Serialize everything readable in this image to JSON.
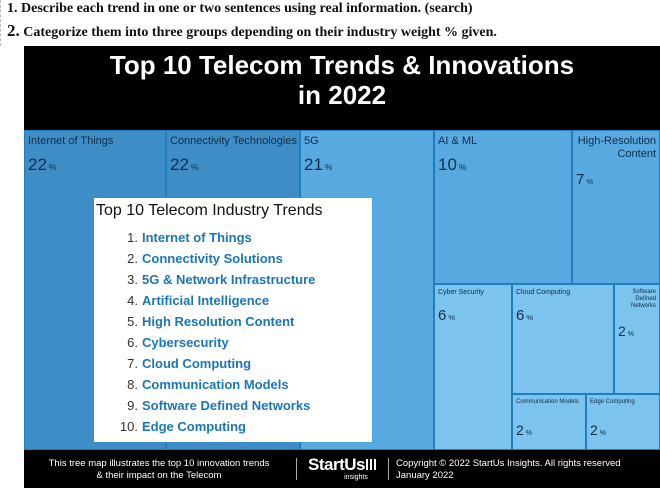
{
  "instructions": {
    "line1": "1.  Describe each trend in one or two sentences using real information. (search)",
    "line2_num": "2.",
    "line2_text": " Categorize them into three groups depending on their industry weight % given."
  },
  "infographic": {
    "title_line1": "Top 10 Telecom Trends & Innovations",
    "title_line2": "in 2022"
  },
  "chart_data": {
    "type": "treemap",
    "title": "Top 10 Telecom Trends & Innovations in 2022",
    "unit": "%",
    "items": [
      {
        "label": "Internet of Things",
        "value": 22
      },
      {
        "label": "Connectivity Technologies",
        "value": 22
      },
      {
        "label": "5G",
        "value": 21
      },
      {
        "label": "AI & ML",
        "value": 10
      },
      {
        "label": "High-Resolution Content",
        "value": 7
      },
      {
        "label": "Cyber Security",
        "value": 6
      },
      {
        "label": "Cloud Computing",
        "value": 6
      },
      {
        "label": "Software Defined Networks",
        "value": 2
      },
      {
        "label": "Communication Models",
        "value": 2
      },
      {
        "label": "Edge Computing",
        "value": 2
      }
    ]
  },
  "trend_box": {
    "title": "Top 10 Telecom Industry Trends",
    "items": [
      {
        "num": "1.",
        "name": "Internet of Things"
      },
      {
        "num": "2.",
        "name": "Connectivity Solutions"
      },
      {
        "num": "3.",
        "name": "5G & Network Infrastructure"
      },
      {
        "num": "4.",
        "name": "Artificial Intelligence"
      },
      {
        "num": "5.",
        "name": "High Resolution Content"
      },
      {
        "num": "6.",
        "name": "Cybersecurity"
      },
      {
        "num": "7.",
        "name": "Cloud Computing"
      },
      {
        "num": "8.",
        "name": "Communication Models"
      },
      {
        "num": "9.",
        "name": "Software Defined Networks"
      },
      {
        "num": "10.",
        "name": "Edge Computing"
      }
    ]
  },
  "footer": {
    "desc_line1": "This tree map illustrates the top 10 innovation trends",
    "desc_line2": "& their impact on the Telecom",
    "logo_name": "StartUs",
    "logo_sub": "insights",
    "copyright": "Copyright © 2022 StartUs Insights. All rights reserved",
    "date": "January 2022"
  },
  "colors": {
    "dark": "#3f8dc6",
    "mid": "#58a9df",
    "light": "#7cc3ee",
    "accent": "#1b76b8"
  }
}
